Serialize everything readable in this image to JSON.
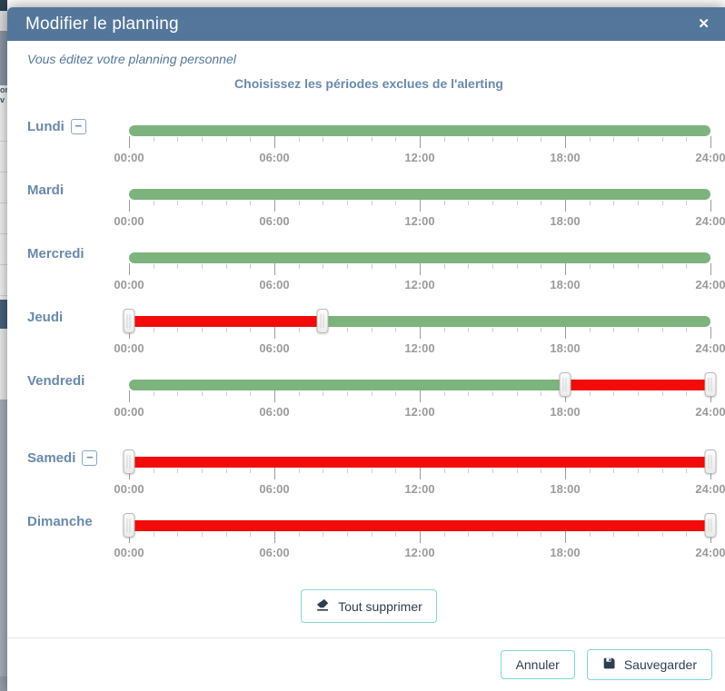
{
  "modal": {
    "title": "Modifier le planning",
    "subtitle": "Vous éditez votre planning personnel",
    "section_title": "Choisissez les périodes exclues de l'alerting"
  },
  "icons": {
    "close": "✕",
    "remove_day": "−",
    "delete_all": "eraser-icon",
    "save": "floppy-disk-icon"
  },
  "slider": {
    "min_hour": 0,
    "max_hour": 24,
    "minor_tick_every_hours": 1,
    "major_tick_hours": [
      0,
      6,
      12,
      18,
      24
    ],
    "time_labels": [
      "00:00",
      "06:00",
      "12:00",
      "18:00",
      "24:00"
    ]
  },
  "days": [
    {
      "label": "Lundi",
      "removable": true,
      "gap_before": false,
      "handles": [],
      "segments": [
        {
          "from_hour": 0,
          "to_hour": 24,
          "state": "included"
        }
      ]
    },
    {
      "label": "Mardi",
      "removable": false,
      "gap_before": false,
      "handles": [],
      "segments": [
        {
          "from_hour": 0,
          "to_hour": 24,
          "state": "included"
        }
      ]
    },
    {
      "label": "Mercredi",
      "removable": false,
      "gap_before": false,
      "handles": [],
      "segments": [
        {
          "from_hour": 0,
          "to_hour": 24,
          "state": "included"
        }
      ]
    },
    {
      "label": "Jeudi",
      "removable": false,
      "gap_before": false,
      "handles": [
        0,
        8
      ],
      "segments": [
        {
          "from_hour": 0,
          "to_hour": 8,
          "state": "excluded"
        },
        {
          "from_hour": 8,
          "to_hour": 24,
          "state": "included"
        }
      ]
    },
    {
      "label": "Vendredi",
      "removable": false,
      "gap_before": false,
      "handles": [
        18,
        24
      ],
      "segments": [
        {
          "from_hour": 0,
          "to_hour": 18,
          "state": "included"
        },
        {
          "from_hour": 18,
          "to_hour": 24,
          "state": "excluded"
        }
      ]
    },
    {
      "label": "Samedi",
      "removable": true,
      "gap_before": true,
      "handles": [
        0,
        24
      ],
      "segments": [
        {
          "from_hour": 0,
          "to_hour": 24,
          "state": "excluded"
        }
      ]
    },
    {
      "label": "Dimanche",
      "removable": false,
      "gap_before": false,
      "handles": [
        0,
        24
      ],
      "segments": [
        {
          "from_hour": 0,
          "to_hour": 24,
          "state": "excluded"
        }
      ]
    }
  ],
  "buttons": {
    "delete_all": "Tout supprimer",
    "cancel": "Annuler",
    "save": "Sauvegarder"
  },
  "colors": {
    "header_bg": "#54769b",
    "day_label_blue": "#6989ad",
    "included_green": "#7db37d",
    "excluded_red": "#f30a0a",
    "button_border_teal": "#7fd8d2",
    "button_text_navy": "#2c3e50"
  },
  "background_fragments": {
    "texts": [
      "on",
      "v"
    ]
  }
}
